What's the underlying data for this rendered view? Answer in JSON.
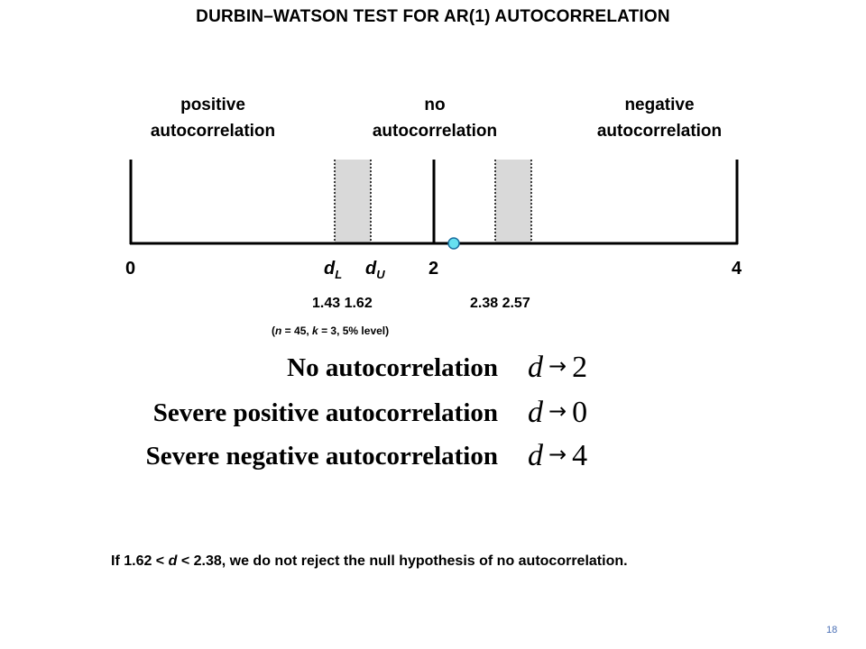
{
  "title": "DURBIN–WATSON TEST FOR AR(1) AUTOCORRELATION",
  "regions": {
    "positive": [
      "positive",
      "autocorrelation"
    ],
    "none": [
      "no",
      "autocorrelation"
    ],
    "negative": [
      "negative",
      "autocorrelation"
    ]
  },
  "axis_ticks": {
    "zero": "0",
    "two": "2",
    "four": "4",
    "dL_main": "d",
    "dL_sub": "L",
    "dU_main": "d",
    "dU_sub": "U"
  },
  "critical_values": {
    "lower": "1.43 1.62",
    "upper": "2.38 2.57"
  },
  "note": {
    "open": "(",
    "n": "n",
    "mid": " = 45, ",
    "k": "k",
    "rest": " = 3, 5% level)"
  },
  "rules": [
    {
      "label": "No autocorrelation",
      "d": "d",
      "arrow": "→",
      "value": "2"
    },
    {
      "label": "Severe positive autocorrelation",
      "d": "d",
      "arrow": "→",
      "value": "0"
    },
    {
      "label": "Severe negative autocorrelation",
      "d": "d",
      "arrow": "→",
      "value": "4"
    }
  ],
  "bottom_note": {
    "prefix": "If 1.62 < ",
    "d": "d",
    "suffix": " < 2.38, we do not reject the null hypothesis of no autocorrelation."
  },
  "slide_number": "18",
  "colors": {
    "band_fill": "#d9d9d9",
    "marker_fill": "#66e0f0",
    "marker_stroke": "#1a6fa0",
    "slide_number": "#4a6fb5"
  }
}
